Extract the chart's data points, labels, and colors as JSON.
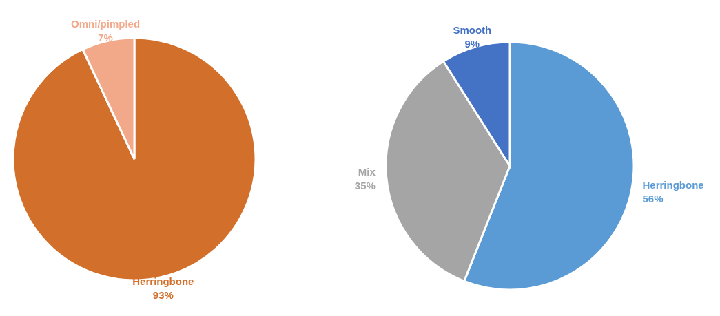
{
  "chart_data": [
    {
      "type": "pie",
      "categories": [
        "Herringbone",
        "Omni/pimpled"
      ],
      "values": [
        93,
        7
      ],
      "colors": [
        "#d26f2a",
        "#f2a98a"
      ],
      "value_labels": [
        "93%",
        "7%"
      ]
    },
    {
      "type": "pie",
      "categories": [
        "Herringbone",
        "Mix",
        "Smooth"
      ],
      "values": [
        56,
        35,
        9
      ],
      "colors": [
        "#5b9bd5",
        "#a5a5a5",
        "#4472c4"
      ],
      "value_labels": [
        "56%",
        "35%",
        "9%"
      ]
    }
  ]
}
